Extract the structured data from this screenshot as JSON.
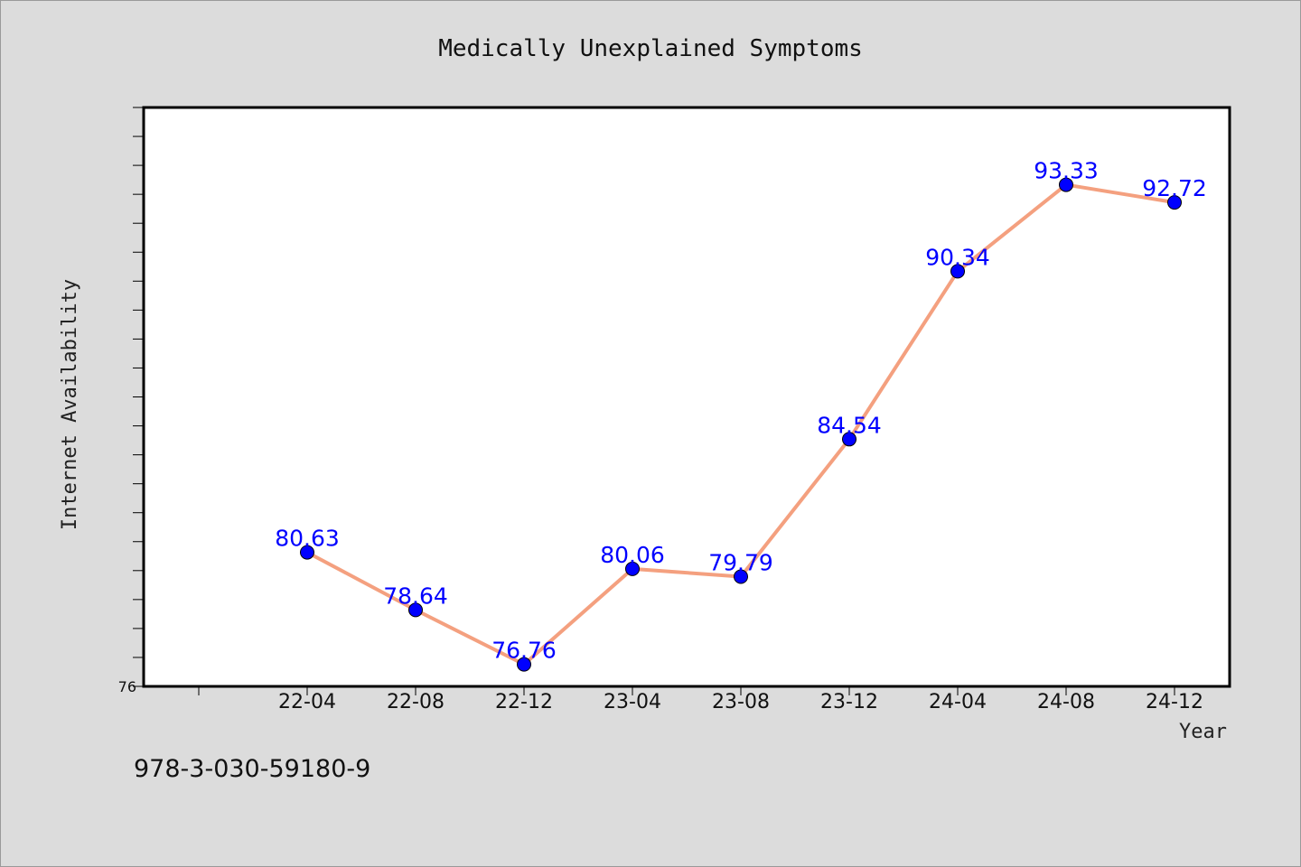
{
  "footer": {
    "text": "978-3-030-59180-9"
  },
  "colors": {
    "background": "#dcdcdc",
    "plot_background": "#ffffff",
    "line": "#f4a07f",
    "marker": "#0000ff",
    "data_label": "#0000ff"
  },
  "chart_data": {
    "type": "line",
    "title": "Medically Unexplained Symptoms",
    "xlabel": "Year",
    "ylabel": "Internet Availability",
    "categories": [
      "22-04",
      "22-08",
      "22-12",
      "23-04",
      "23-08",
      "23-12",
      "24-04",
      "24-08",
      "24-12"
    ],
    "series": [
      {
        "values": [
          80.63,
          78.64,
          76.76,
          80.06,
          79.79,
          84.54,
          90.34,
          93.33,
          92.72
        ],
        "labels": [
          "80.63",
          "78.64",
          "76.76",
          "80.06",
          "79.79",
          "84.54",
          "90.34",
          "93.33",
          "92.72"
        ]
      }
    ],
    "ylim": [
      76,
      96
    ],
    "yticks_labeled": [
      "76"
    ],
    "grid": false,
    "legend": "none"
  }
}
